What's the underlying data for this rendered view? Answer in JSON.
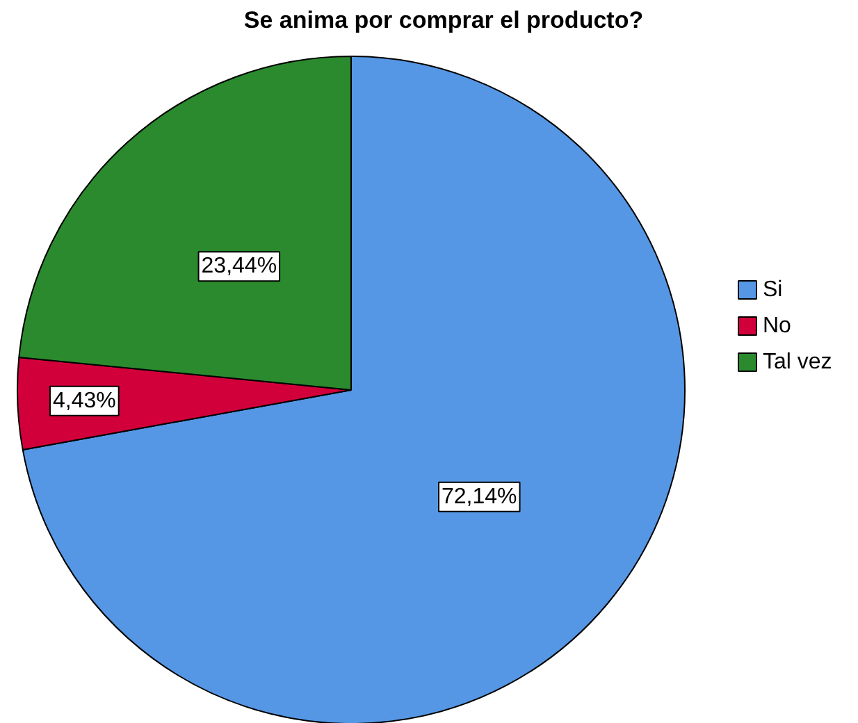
{
  "chart_data": {
    "type": "pie",
    "title": "Se anima por comprar el producto?",
    "categories": [
      "Si",
      "No",
      "Tal vez"
    ],
    "values": [
      72.14,
      4.43,
      23.44
    ],
    "colors": [
      "#5597e4",
      "#d2003a",
      "#2b8a2e"
    ],
    "value_labels": [
      "72,14%",
      "4,43%",
      "23,44%"
    ],
    "legend": "right"
  }
}
